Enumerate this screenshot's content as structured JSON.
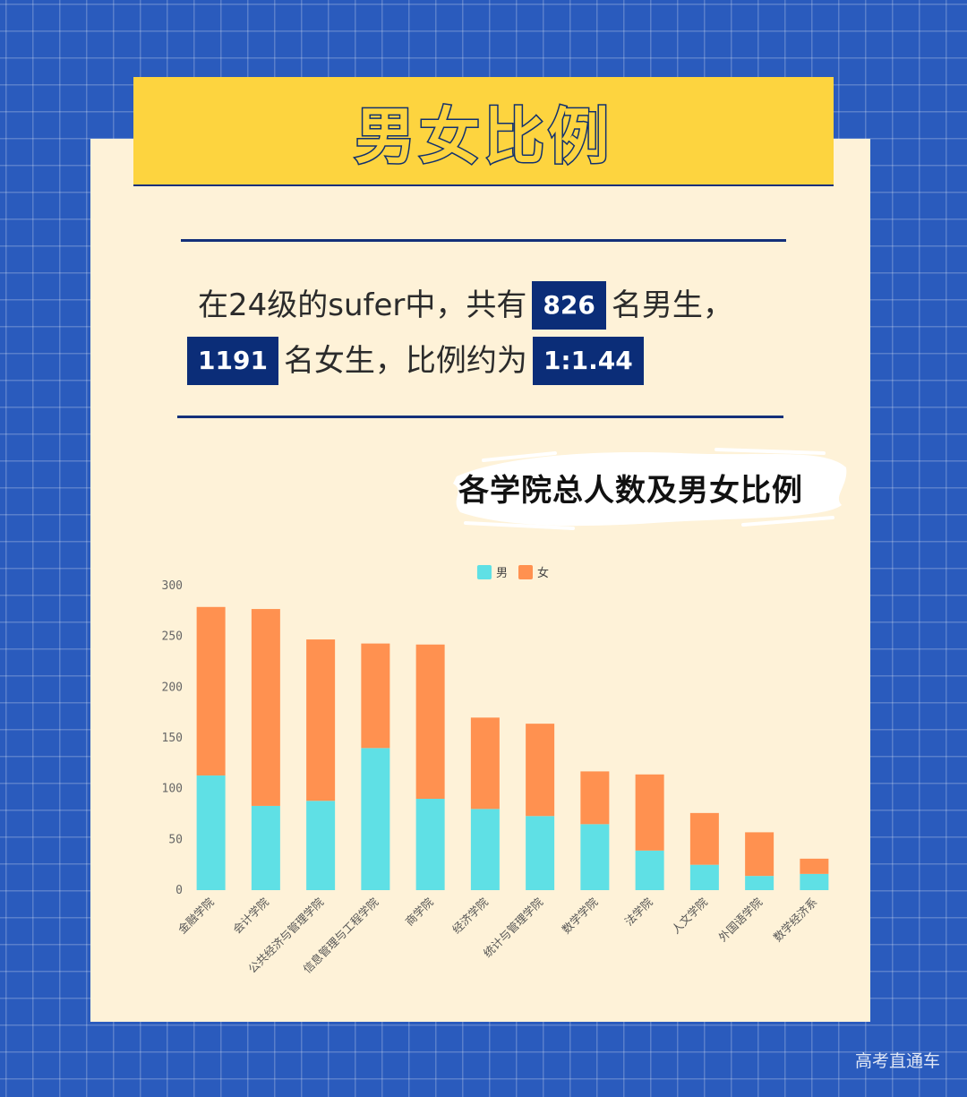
{
  "page": {
    "title": "男女比例",
    "summary": {
      "line1_before": "在24级的sufer中，共有",
      "male_count": "826",
      "line1_after": "名男生，",
      "female_count": "1191",
      "line2_middle": "名女生，比例约为",
      "ratio": "1:1.44"
    },
    "chart_heading": "各学院总人数及男女比例",
    "watermark": "高考直通车"
  },
  "colors": {
    "background": "#2a5bbd",
    "card": "#fef2d8",
    "banner": "#fdd43f",
    "navy": "#0b2d78",
    "male": "#5fe0e5",
    "female": "#ff9150"
  },
  "chart_data": {
    "type": "bar",
    "stacked": true,
    "categories": [
      "金融学院",
      "会计学院",
      "公共经济与管理学院",
      "信息管理与工程学院",
      "商学院",
      "经济学院",
      "统计与管理学院",
      "数学学院",
      "法学院",
      "人文学院",
      "外国语学院",
      "数学经济系"
    ],
    "series": [
      {
        "name": "男",
        "color": "#5fe0e5",
        "values": [
          113,
          83,
          88,
          140,
          90,
          80,
          73,
          65,
          39,
          25,
          14,
          16
        ]
      },
      {
        "name": "女",
        "color": "#ff9150",
        "values": [
          166,
          194,
          159,
          103,
          152,
          90,
          91,
          52,
          75,
          51,
          43,
          15
        ]
      }
    ],
    "ylim": [
      0,
      300
    ],
    "yticks": [
      0,
      50,
      100,
      150,
      200,
      250,
      300
    ],
    "legend": "top-center",
    "grid": false,
    "xlabel": "",
    "ylabel": ""
  }
}
